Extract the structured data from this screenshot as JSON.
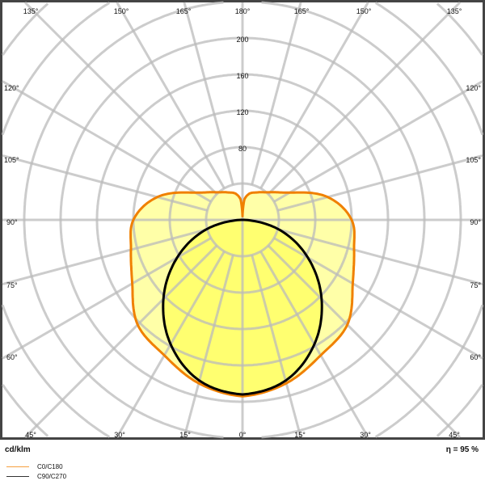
{
  "chart_data": {
    "type": "polar-line",
    "unit_label": "cd/klm",
    "efficiency_label": "η = 95 %",
    "radial_ticks": [
      80,
      120,
      160,
      200
    ],
    "radial_step": 40,
    "angle_labels": {
      "top": [
        "135°",
        "150°",
        "165°",
        "180°",
        "165°",
        "150°",
        "135°"
      ],
      "left": [
        "120°",
        "105°",
        "90°",
        "75°",
        "60°"
      ],
      "right": [
        "120°",
        "105°",
        "90°",
        "75°",
        "60°"
      ],
      "bottom": [
        "45°",
        "30°",
        "15°",
        "0°",
        "15°",
        "30°",
        "45°"
      ]
    },
    "angle_step_deg": 15,
    "grid": true,
    "legend_position": "bottom-left",
    "series": [
      {
        "name": "C0/C180",
        "color": "#f08000",
        "fill": "#ffffa8",
        "angles": [
          0,
          15,
          30,
          45,
          60,
          75,
          90,
          105,
          120,
          135,
          150,
          165,
          175,
          180
        ],
        "values": [
          194,
          186,
          172,
          163,
          140,
          127,
          120,
          97,
          60,
          43,
          35,
          30,
          22,
          4
        ]
      },
      {
        "name": "C90/C270",
        "color": "#000000",
        "fill": "#ffff70",
        "angles": [
          0,
          15,
          30,
          45,
          60,
          75,
          90
        ],
        "values": [
          192,
          183,
          158,
          123,
          83,
          42,
          0
        ]
      }
    ]
  }
}
